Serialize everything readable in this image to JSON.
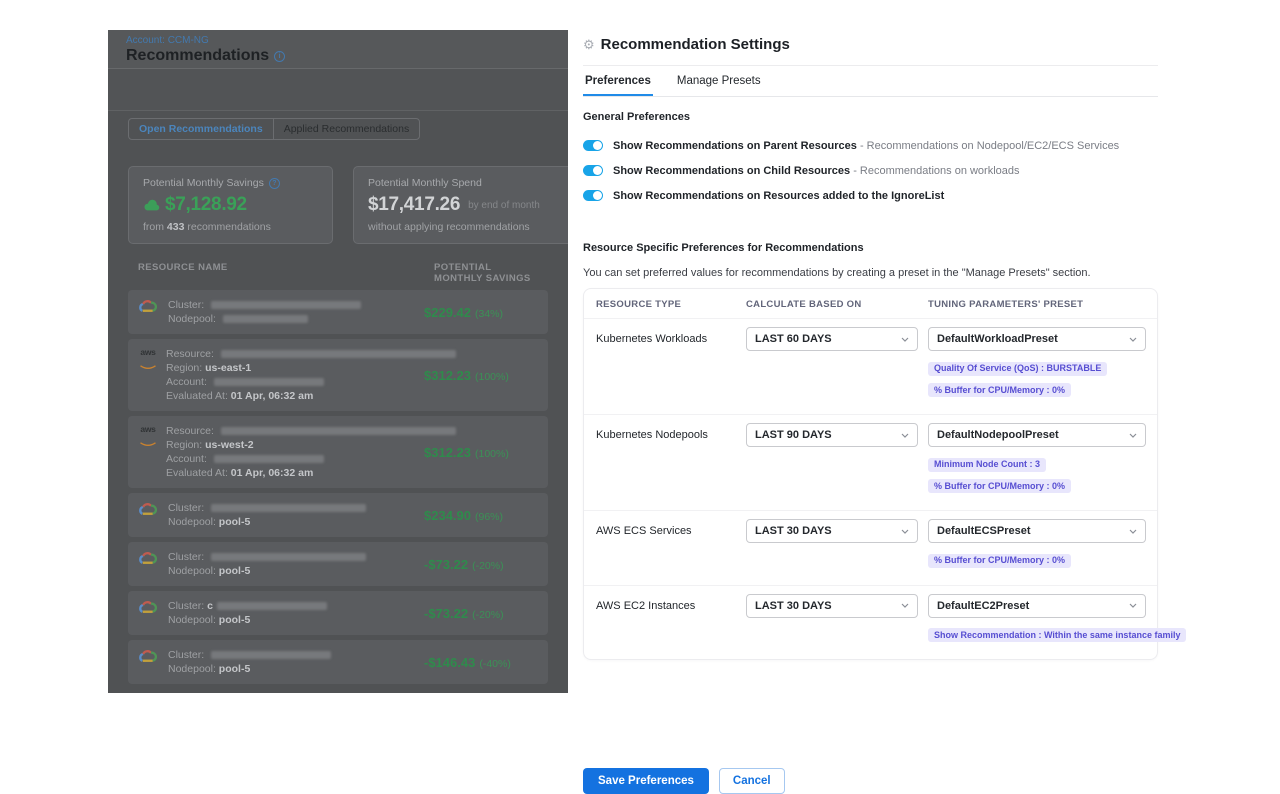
{
  "colors": {
    "accent_blue": "#1472E0",
    "tab_underline_blue": "#208BE8",
    "toggle_blue": "#18A4E8",
    "badge_bg": "#E8E6FC",
    "badge_text": "#574ED2",
    "savings_green": "#2F8B4C"
  },
  "page": {
    "breadcrumb": "Account: CCM-NG",
    "title": "Recommendations",
    "tabs": {
      "open": "Open Recommendations",
      "applied": "Applied Recommendations"
    },
    "savings_card": {
      "label": "Potential Monthly Savings",
      "value": "$7,128.92",
      "sub_prefix": "from ",
      "sub_count": "433",
      "sub_suffix": " recommendations"
    },
    "spend_card": {
      "label": "Potential Monthly Spend",
      "value": "$17,417.26",
      "value_suffix": "by end of month",
      "sub": "without applying recommendations"
    },
    "table": {
      "col_resource": "RESOURCE NAME",
      "col_savings": "POTENTIAL MONTHLY SAVINGS",
      "rows": [
        {
          "provider": "gcp",
          "lines": [
            {
              "label": "Cluster:",
              "redact": 150
            },
            {
              "label": "Nodepool:",
              "redact": 85
            }
          ],
          "savings": "$229.42",
          "pct": "(34%)"
        },
        {
          "provider": "aws",
          "lines": [
            {
              "label": "Resource:",
              "redact": 235
            },
            {
              "label": "Region:",
              "value": "us-east-1"
            },
            {
              "label": "Account:",
              "redact": 110
            },
            {
              "label": "Evaluated At:",
              "value": "01 Apr, 06:32 am"
            }
          ],
          "savings": "$312.23",
          "pct": "(100%)"
        },
        {
          "provider": "aws",
          "lines": [
            {
              "label": "Resource:",
              "redact": 235
            },
            {
              "label": "Region:",
              "value": "us-west-2"
            },
            {
              "label": "Account:",
              "redact": 110
            },
            {
              "label": "Evaluated At:",
              "value": "01 Apr, 06:32 am"
            }
          ],
          "savings": "$312.23",
          "pct": "(100%)"
        },
        {
          "provider": "gcp",
          "lines": [
            {
              "label": "Cluster:",
              "redact": 155
            },
            {
              "label": "Nodepool:",
              "value": "pool-5"
            }
          ],
          "savings": "$234.90",
          "pct": "(96%)"
        },
        {
          "provider": "gcp",
          "lines": [
            {
              "label": "Cluster:",
              "redact": 155
            },
            {
              "label": "Nodepool:",
              "value": "pool-5"
            }
          ],
          "savings": "-$73.22",
          "pct": "(-20%)"
        },
        {
          "provider": "gcp",
          "lines": [
            {
              "label": "Cluster:",
              "value": "c",
              "redact": 110
            },
            {
              "label": "Nodepool:",
              "value": "pool-5"
            }
          ],
          "savings": "-$73.22",
          "pct": "(-20%)"
        },
        {
          "provider": "gcp",
          "lines": [
            {
              "label": "Cluster:",
              "redact": 120
            },
            {
              "label": "Nodepool:",
              "value": "pool-5"
            }
          ],
          "savings": "-$146.43",
          "pct": "(-40%)"
        }
      ]
    }
  },
  "drawer": {
    "title": "Recommendation Settings",
    "tabs": {
      "preferences": "Preferences",
      "manage_presets": "Manage Presets"
    },
    "general": {
      "heading": "General Preferences",
      "toggles": [
        {
          "bold": "Show Recommendations on Parent Resources",
          "rest": " - Recommendations on Nodepool/EC2/ECS Services",
          "on": true
        },
        {
          "bold": "Show Recommendations on Child Resources",
          "rest": " - Recommendations on workloads",
          "on": true
        },
        {
          "bold": "Show Recommendations on Resources added to the IgnoreList",
          "rest": "",
          "on": true
        }
      ]
    },
    "resource_prefs": {
      "heading": "Resource Specific Preferences for Recommendations",
      "description": "You can set preferred values for recommendations by creating a preset in the \"Manage Presets\" section.",
      "columns": [
        "RESOURCE TYPE",
        "CALCULATE BASED ON",
        "TUNING PARAMETERS' PRESET"
      ],
      "rows": [
        {
          "type": "Kubernetes Workloads",
          "period": "LAST 60 DAYS",
          "preset": "DefaultWorkloadPreset",
          "badges": [
            "Quality Of Service (QoS) : BURSTABLE",
            "% Buffer for CPU/Memory : 0%"
          ]
        },
        {
          "type": "Kubernetes Nodepools",
          "period": "LAST 90 DAYS",
          "preset": "DefaultNodepoolPreset",
          "badges": [
            "Minimum Node Count : 3",
            "% Buffer for CPU/Memory : 0%"
          ]
        },
        {
          "type": "AWS ECS Services",
          "period": "LAST 30 DAYS",
          "preset": "DefaultECSPreset",
          "badges": [
            "% Buffer for CPU/Memory : 0%"
          ]
        },
        {
          "type": "AWS EC2 Instances",
          "period": "LAST 30 DAYS",
          "preset": "DefaultEC2Preset",
          "badges": [
            "Show Recommendation : Within the same instance family"
          ]
        }
      ]
    },
    "buttons": {
      "save": "Save Preferences",
      "cancel": "Cancel"
    }
  }
}
